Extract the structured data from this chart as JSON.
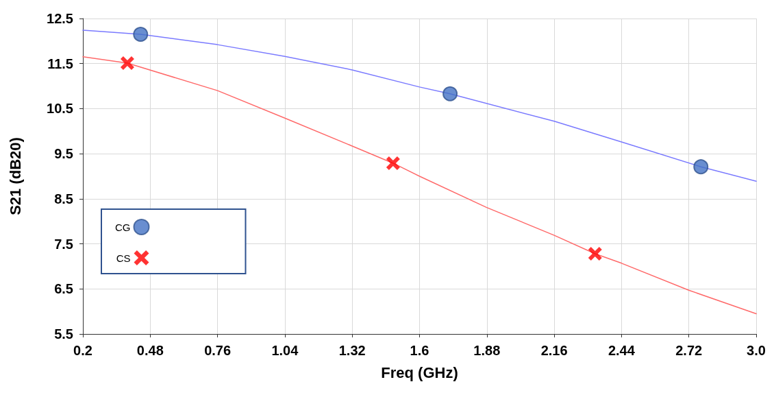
{
  "chart_data": {
    "type": "line",
    "xlabel": "Freq (GHz)",
    "ylabel": "S21 (dB20)",
    "xlim": [
      0.2,
      3.0
    ],
    "xticks": [
      {
        "value": 0.2,
        "label": "0.2"
      },
      0.48,
      0.76,
      1.04,
      1.32,
      1.6,
      1.88,
      2.16,
      2.44,
      2.72,
      {
        "value": 3.0,
        "label": "3.0"
      }
    ],
    "ylim": [
      5.5,
      12.5
    ],
    "yticks": [
      5.5,
      6.5,
      7.5,
      8.5,
      9.5,
      10.5,
      11.5,
      12.5
    ],
    "grid": true,
    "legend": "bottom left",
    "line_style": "solid",
    "series": [
      {
        "marker": "none",
        "color": "#7a7aff",
        "x": [
          0.2,
          0.44,
          0.76,
          1.04,
          1.32,
          1.6,
          1.727,
          2.16,
          2.44,
          2.77,
          3.0
        ],
        "values": [
          12.24,
          12.15,
          11.92,
          11.66,
          11.36,
          10.98,
          10.83,
          10.22,
          9.76,
          9.21,
          8.89
        ]
      },
      {
        "marker": "none",
        "color": "#ff6a6a",
        "x": [
          0.2,
          0.385,
          0.76,
          1.04,
          1.32,
          1.49,
          1.6,
          1.878,
          2.16,
          2.33,
          2.44,
          2.72,
          3.0
        ],
        "values": [
          11.65,
          11.51,
          10.9,
          10.29,
          9.67,
          9.29,
          9.0,
          8.31,
          7.69,
          7.28,
          7.07,
          6.47,
          5.95
        ]
      },
      {
        "type": "scatter",
        "name": "CG",
        "marker": "circle",
        "color": "#4472c4",
        "x": [
          0.44,
          1.727,
          2.77
        ],
        "values": [
          12.15,
          10.83,
          9.21
        ]
      },
      {
        "type": "scatter",
        "name": "CS",
        "marker": "cross",
        "color": "#ff0000",
        "x": [
          0.385,
          1.49,
          2.33
        ],
        "values": [
          11.51,
          9.29,
          7.28
        ]
      }
    ]
  }
}
